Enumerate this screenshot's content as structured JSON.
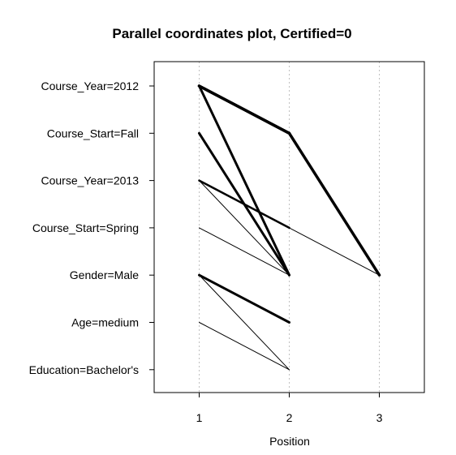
{
  "chart_data": {
    "type": "line",
    "title": "Parallel coordinates plot, Certified=0",
    "xlabel": "Position",
    "ylabel": "",
    "xlim": [
      0.5,
      3.5
    ],
    "x_ticks": [
      1,
      2,
      3
    ],
    "grid": "vertical dotted at x ticks",
    "line_color": "#000000",
    "grid_color": "#c0c0c0",
    "levels": [
      "Course_Year=2012",
      "Course_Start=Fall",
      "Course_Year=2013",
      "Course_Start=Spring",
      "Gender=Male",
      "Age=medium",
      "Education=Bachelor's"
    ],
    "series": [
      {
        "points": [
          "Course_Year=2012",
          "Course_Start=Fall",
          "Gender=Male"
        ],
        "weight": 3.5
      },
      {
        "points": [
          "Course_Year=2012",
          "Course_Start=Fall"
        ],
        "weight": 3.5
      },
      {
        "points": [
          "Course_Year=2012",
          "Gender=Male"
        ],
        "weight": 3
      },
      {
        "points": [
          "Course_Start=Fall",
          "Gender=Male"
        ],
        "weight": 3
      },
      {
        "points": [
          "Course_Year=2013",
          "Course_Start=Spring",
          "Gender=Male"
        ],
        "weight": 1
      },
      {
        "points": [
          "Course_Year=2013",
          "Course_Start=Spring"
        ],
        "weight": 2.5
      },
      {
        "points": [
          "Course_Year=2013",
          "Gender=Male"
        ],
        "weight": 1
      },
      {
        "points": [
          "Course_Start=Spring",
          "Gender=Male"
        ],
        "weight": 1
      },
      {
        "points": [
          "Gender=Male",
          "Age=medium"
        ],
        "weight": 3
      },
      {
        "points": [
          "Gender=Male",
          "Education=Bachelor's"
        ],
        "weight": 1
      },
      {
        "points": [
          "Age=medium",
          "Education=Bachelor's"
        ],
        "weight": 1
      }
    ]
  }
}
